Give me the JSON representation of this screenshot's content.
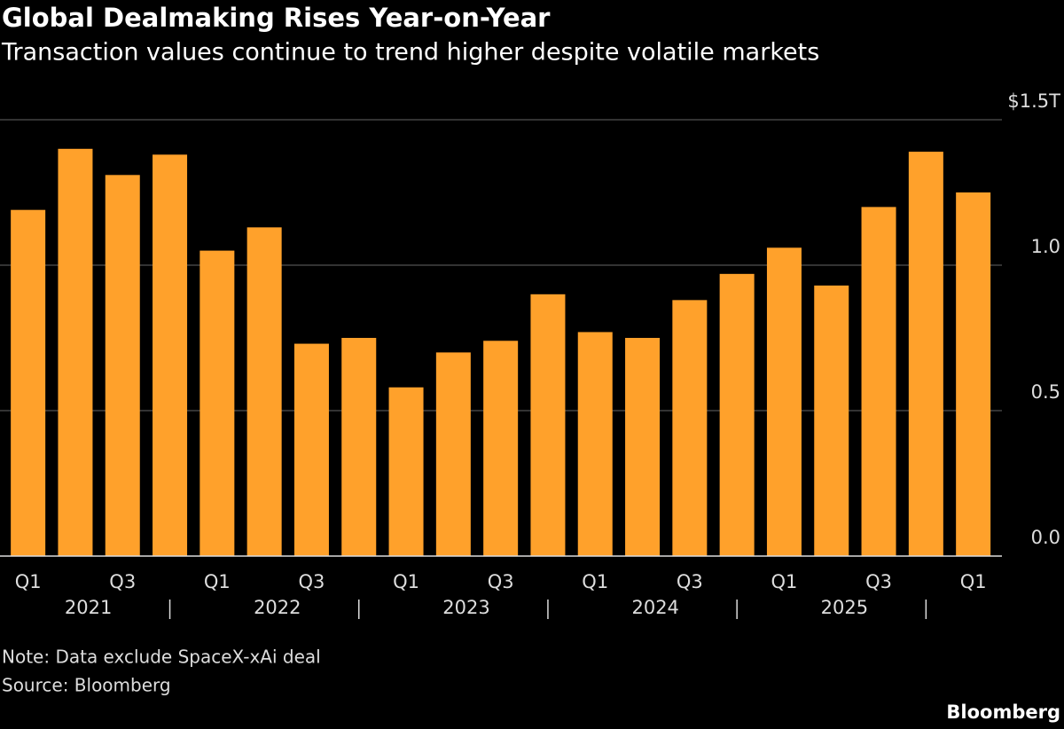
{
  "chart_data": {
    "type": "bar",
    "title": "Global Dealmaking Rises Year-on-Year",
    "subtitle": "Transaction values continue to trend higher despite volatile markets",
    "categories": [
      "Q1",
      null,
      "Q3",
      null,
      "Q1",
      null,
      "Q3",
      null,
      "Q1",
      null,
      "Q3",
      null,
      "Q1",
      null,
      "Q3",
      null,
      "Q1",
      null,
      "Q3",
      null,
      "Q1"
    ],
    "year_groups": [
      "2021",
      "2022",
      "2023",
      "2024",
      "2025"
    ],
    "values": [
      1.19,
      1.4,
      1.31,
      1.38,
      1.05,
      1.13,
      0.73,
      0.75,
      0.58,
      0.7,
      0.74,
      0.9,
      0.77,
      0.75,
      0.88,
      0.97,
      1.06,
      0.93,
      1.2,
      1.39,
      1.25
    ],
    "color": "#ffa12b",
    "ylim": [
      0,
      1.5
    ],
    "yticks": [
      {
        "value": 0,
        "label": "0.0"
      },
      0.5,
      {
        "value": 1,
        "label": "1.0"
      },
      {
        "value": 1.5,
        "label": "$1.5T"
      }
    ],
    "grid": true,
    "note": "Note: Data exclude SpaceX-xAi deal",
    "source": "Source: Bloomberg",
    "brand": "Bloomberg"
  }
}
